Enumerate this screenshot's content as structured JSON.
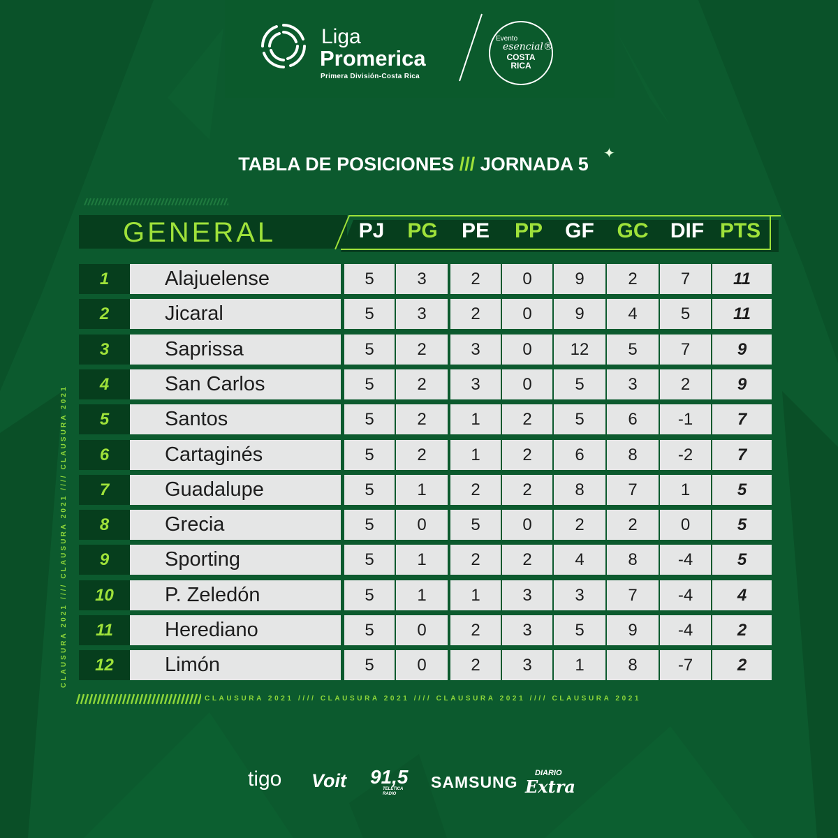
{
  "header": {
    "brand_liga": "Liga",
    "brand_promerica": "Promerica",
    "brand_subtitle": "Primera División-Costa Rica",
    "seal_line1": "Evento",
    "seal_line2": "esencial®",
    "seal_line3": "COSTA",
    "seal_line4": "RICA"
  },
  "title": {
    "left": "TABLA DE POSICIONES",
    "separator": "///",
    "right": "JORNADA 5"
  },
  "table": {
    "section_label": "GENERAL",
    "columns": [
      {
        "label": "PJ",
        "color": "#ffffff"
      },
      {
        "label": "PG",
        "color": "#9fe23a"
      },
      {
        "label": "PE",
        "color": "#ffffff"
      },
      {
        "label": "PP",
        "color": "#9fe23a"
      },
      {
        "label": "GF",
        "color": "#ffffff"
      },
      {
        "label": "GC",
        "color": "#9fe23a"
      },
      {
        "label": "DIF",
        "color": "#ffffff"
      },
      {
        "label": "PTS",
        "color": "#9fe23a"
      }
    ],
    "rows": [
      {
        "pos": "1",
        "team": "Alajuelense",
        "stats": [
          "5",
          "3",
          "2",
          "0",
          "9",
          "2",
          "7",
          "11"
        ]
      },
      {
        "pos": "2",
        "team": "Jicaral",
        "stats": [
          "5",
          "3",
          "2",
          "0",
          "9",
          "4",
          "5",
          "11"
        ]
      },
      {
        "pos": "3",
        "team": "Saprissa",
        "stats": [
          "5",
          "2",
          "3",
          "0",
          "12",
          "5",
          "7",
          "9"
        ]
      },
      {
        "pos": "4",
        "team": "San Carlos",
        "stats": [
          "5",
          "2",
          "3",
          "0",
          "5",
          "3",
          "2",
          "9"
        ]
      },
      {
        "pos": "5",
        "team": "Santos",
        "stats": [
          "5",
          "2",
          "1",
          "2",
          "5",
          "6",
          "-1",
          "7"
        ]
      },
      {
        "pos": "6",
        "team": "Cartaginés",
        "stats": [
          "5",
          "2",
          "1",
          "2",
          "6",
          "8",
          "-2",
          "7"
        ]
      },
      {
        "pos": "7",
        "team": "Guadalupe",
        "stats": [
          "5",
          "1",
          "2",
          "2",
          "8",
          "7",
          "1",
          "5"
        ]
      },
      {
        "pos": "8",
        "team": "Grecia",
        "stats": [
          "5",
          "0",
          "5",
          "0",
          "2",
          "2",
          "0",
          "5"
        ]
      },
      {
        "pos": "9",
        "team": "Sporting",
        "stats": [
          "5",
          "1",
          "2",
          "2",
          "4",
          "8",
          "-4",
          "5"
        ]
      },
      {
        "pos": "10",
        "team": "P. Zeledón",
        "stats": [
          "5",
          "1",
          "1",
          "3",
          "3",
          "7",
          "-4",
          "4"
        ]
      },
      {
        "pos": "11",
        "team": "Herediano",
        "stats": [
          "5",
          "0",
          "2",
          "3",
          "5",
          "9",
          "-4",
          "2"
        ]
      },
      {
        "pos": "12",
        "team": "Limón",
        "stats": [
          "5",
          "0",
          "2",
          "3",
          "1",
          "8",
          "-7",
          "2"
        ]
      }
    ]
  },
  "side_text": "CLAUSURA 2021 //// CLAUSURA 2021 //// CLAUSURA 2021",
  "bottom_text": "CLAUSURA 2021 //// CLAUSURA 2021 //// CLAUSURA 2021 //// CLAUSURA 2021",
  "sponsors": {
    "tigo": "tigo",
    "voit": "Voit",
    "radio_freq": "91,5",
    "radio_name": "TELETICA RADIO",
    "samsung": "SAMSUNG",
    "diario_top": "DIARIO",
    "diario_bottom": "Extra"
  },
  "colors": {
    "background": "#0c5a2e",
    "accent_green": "#9fe23a",
    "dark_panel": "#063e1d",
    "row_fill": "#e5e6e6"
  }
}
